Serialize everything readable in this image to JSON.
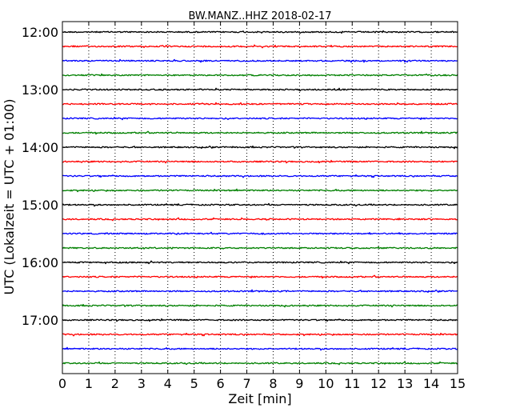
{
  "chart_data": {
    "type": "line",
    "chart_style": "seismogram-helicorder",
    "title": "BW.MANZ..HHZ 2018-02-17",
    "xlabel": "Zeit  [min]",
    "ylabel": "UTC (Lokalzeit = UTC + 01:00)",
    "xlim": [
      0,
      15
    ],
    "x_ticks": [
      0,
      1,
      2,
      3,
      4,
      5,
      6,
      7,
      8,
      9,
      10,
      11,
      12,
      13,
      14,
      15
    ],
    "x_tick_labels": [
      "0",
      "1",
      "2",
      "3",
      "4",
      "5",
      "6",
      "7",
      "8",
      "9",
      "10",
      "11",
      "12",
      "13",
      "14",
      "15"
    ],
    "y_tick_labels": [
      "12:00",
      "13:00",
      "14:00",
      "15:00",
      "16:00",
      "17:00"
    ],
    "y_ticks_minutes": [
      0,
      60,
      120,
      180,
      240,
      300
    ],
    "trace_interval_minutes": 15,
    "trace_start_times": [
      "12:00",
      "12:15",
      "12:30",
      "12:45",
      "13:00",
      "13:15",
      "13:30",
      "13:45",
      "14:00",
      "14:15",
      "14:30",
      "14:45",
      "15:00",
      "15:15",
      "15:30",
      "15:45",
      "16:00",
      "16:15",
      "16:30",
      "16:45",
      "17:00",
      "17:15",
      "17:30",
      "17:45"
    ],
    "trace_color_cycle": [
      "#000000",
      "#ff0000",
      "#0000ff",
      "#008000"
    ],
    "grid": "vertical-dotted",
    "legend": "none"
  }
}
